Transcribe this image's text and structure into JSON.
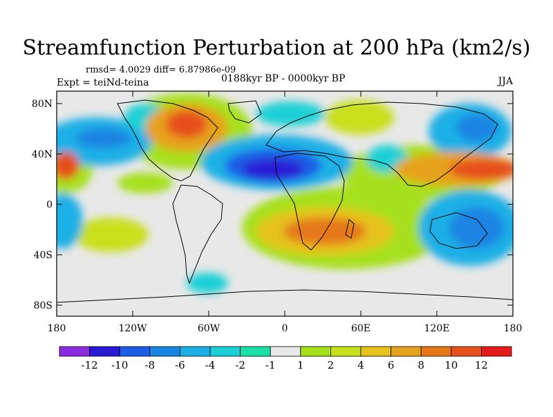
{
  "title": "Streamfunction Perturbation at 200 hPa (km2/s)",
  "stats": "rmsd= 4.0029 diff= 6.87986e-09",
  "experiment": "Expt = teiNd-teina",
  "period": "0188kyr BP - 0000kyr BP",
  "season": "JJA",
  "map": {
    "y_axis_labels": [
      "80N",
      "40N",
      "0",
      "40S",
      "80S"
    ],
    "x_axis_labels": [
      "180",
      "120W",
      "60W",
      "0",
      "60E",
      "120E",
      "180"
    ],
    "colors": {
      "background": "#e8e8e8",
      "coast": "#000000"
    }
  },
  "colorbar": {
    "labels": [
      "-12",
      "-10",
      "-8",
      "-6",
      "-4",
      "-2",
      "-1",
      "1",
      "2",
      "4",
      "6",
      "8",
      "10",
      "12"
    ],
    "colors": [
      "#8a2be2",
      "#2a1ad6",
      "#1a5ee6",
      "#1a84e2",
      "#1ab0e6",
      "#1ad0d6",
      "#1ae0a6",
      "#e8e8e8",
      "#a6e01a",
      "#c8e01a",
      "#e6c21a",
      "#e6a21a",
      "#e6781a",
      "#e6501a",
      "#e61a1a"
    ]
  }
}
